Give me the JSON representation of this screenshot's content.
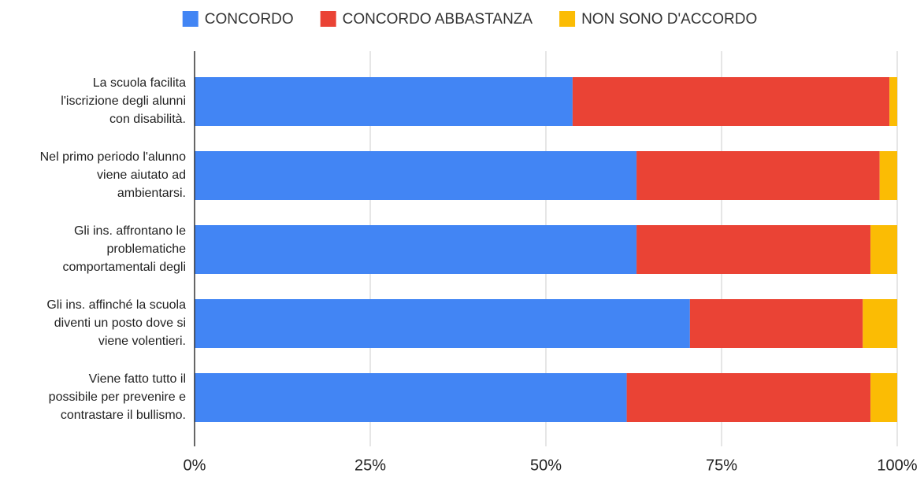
{
  "chart_data": {
    "type": "stacked-barh",
    "categories": [
      "La scuola facilita\nl'iscrizione degli alunni\ncon disabilità.",
      "Nel primo periodo l'alunno\nviene aiutato ad\nambientarsi.",
      "Gli ins. affrontano le\nproblematiche\ncomportamentali degli",
      "Gli ins. affinché la scuola\ndiventi un posto dove si\nviene volentieri.",
      "Viene fatto tutto il\npossibile per prevenire e\ncontrastare il bullismo."
    ],
    "series": [
      {
        "name": "CONCORDO",
        "color": "#4285f4",
        "values": [
          53.8,
          62.9,
          62.9,
          70.5,
          61.5
        ]
      },
      {
        "name": "CONCORDO ABBASTANZA",
        "color": "#ea4335",
        "values": [
          45.1,
          34.6,
          33.3,
          24.6,
          34.7
        ]
      },
      {
        "name": "NON SONO D'ACCORDO",
        "color": "#fbbc04",
        "values": [
          1.1,
          2.5,
          3.8,
          4.9,
          3.8
        ]
      }
    ],
    "xlim": [
      0,
      100
    ],
    "xticks": [
      {
        "value": 0,
        "label": "0%"
      },
      {
        "value": 25,
        "label": "25%"
      },
      {
        "value": 50,
        "label": "50%"
      },
      {
        "value": 75,
        "label": "75%"
      },
      {
        "value": 100,
        "label": "100%"
      }
    ],
    "grid": true,
    "legend": "top"
  }
}
